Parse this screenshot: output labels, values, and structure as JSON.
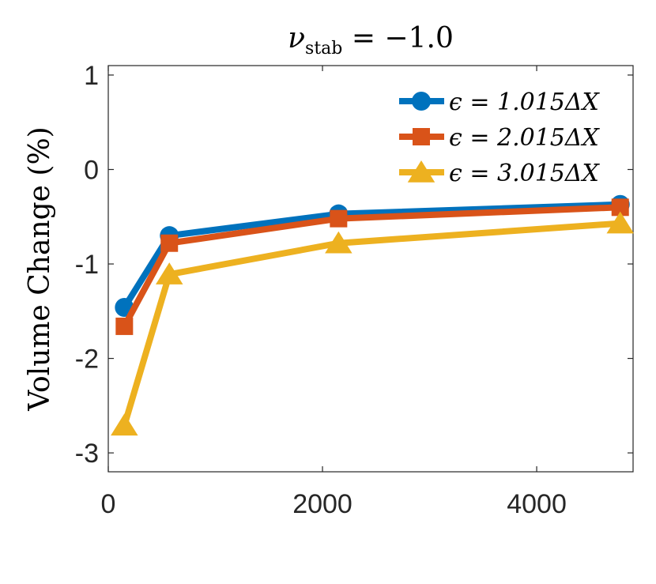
{
  "chart_data": {
    "type": "line",
    "title": "ν_stab = −1.0",
    "xlabel": "",
    "ylabel": "Volume Change (%)",
    "xlim": [
      0,
      4900
    ],
    "ylim": [
      -3.2,
      1.1
    ],
    "xticks": [
      0,
      2000,
      4000
    ],
    "xtick_labels": [
      "0",
      "2000",
      "4000"
    ],
    "yticks": [
      1,
      0,
      -1,
      -2,
      -3
    ],
    "ytick_labels": [
      "1",
      "0",
      "-1",
      "-2",
      "-3"
    ],
    "legend_position": "top-right",
    "series": [
      {
        "name": "ϵ = 1.015ΔX",
        "color": "#0072BD",
        "marker": "circle",
        "x": [
          150,
          570,
          2150,
          4780
        ],
        "y": [
          -1.46,
          -0.7,
          -0.47,
          -0.37
        ]
      },
      {
        "name": "ϵ = 2.015ΔX",
        "color": "#D95319",
        "marker": "square",
        "x": [
          150,
          570,
          2150,
          4780
        ],
        "y": [
          -1.66,
          -0.78,
          -0.52,
          -0.4
        ]
      },
      {
        "name": "ϵ = 3.015ΔX",
        "color": "#EDB120",
        "marker": "triangle",
        "x": [
          150,
          570,
          2150,
          4780
        ],
        "y": [
          -2.71,
          -1.11,
          -0.78,
          -0.57
        ]
      }
    ]
  }
}
